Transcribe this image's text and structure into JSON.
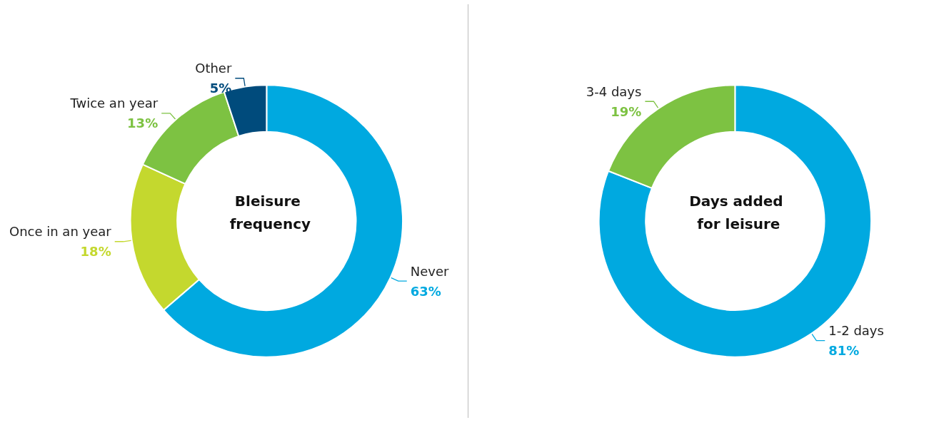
{
  "chart_data": [
    {
      "type": "donut",
      "title": "Bleisure frequency",
      "categories": [
        "Never",
        "Once in an year",
        "Twice an year",
        "Other"
      ],
      "values": [
        63,
        18,
        13,
        5
      ],
      "value_labels": [
        "63%",
        "18%",
        "13%",
        "5%"
      ],
      "colors": [
        "#00a9e0",
        "#c4d82e",
        "#7dc242",
        "#004b7c"
      ]
    },
    {
      "type": "donut",
      "title": "Days added for leisure",
      "categories": [
        "1-2 days",
        "3-4 days"
      ],
      "values": [
        81,
        19
      ],
      "value_labels": [
        "81%",
        "19%"
      ],
      "colors": [
        "#00a9e0",
        "#7dc242"
      ]
    }
  ]
}
